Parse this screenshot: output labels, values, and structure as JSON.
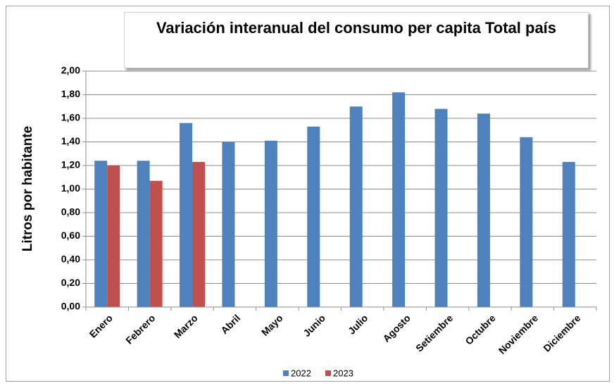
{
  "chart_data": {
    "type": "bar",
    "title": "Variación interanual del consumo per capita  Total país",
    "y_label": "Litros  por  habitante",
    "categories": [
      "Enero",
      "Febrero",
      "Marzo",
      "Abril",
      "Mayo",
      "Junio",
      "Julio",
      "Agosto",
      "Setiembre",
      "Octubre",
      "Noviembre",
      "Diciembre"
    ],
    "series": [
      {
        "name": "2022",
        "color": "#4f81bd",
        "values": [
          1.24,
          1.24,
          1.56,
          1.4,
          1.41,
          1.53,
          1.7,
          1.82,
          1.68,
          1.64,
          1.44,
          1.23
        ]
      },
      {
        "name": "2023",
        "color": "#c0504d",
        "values": [
          1.2,
          1.07,
          1.23,
          null,
          null,
          null,
          null,
          null,
          null,
          null,
          null,
          null
        ]
      }
    ],
    "ylim": [
      0,
      2
    ],
    "yticks": [
      {
        "value": 0,
        "label": "0,00"
      },
      {
        "value": 0.2,
        "label": "0,20"
      },
      {
        "value": 0.4,
        "label": "0,40"
      },
      {
        "value": 0.6,
        "label": "0,60"
      },
      {
        "value": 0.8,
        "label": "0,80"
      },
      {
        "value": 1,
        "label": "1,00"
      },
      {
        "value": 1.2,
        "label": "1,20"
      },
      {
        "value": 1.4,
        "label": "1,40"
      },
      {
        "value": 1.6,
        "label": "1,60"
      },
      {
        "value": 1.8,
        "label": "1,80"
      },
      {
        "value": 2,
        "label": "2,00"
      }
    ],
    "grid": true,
    "legend": "bottom"
  }
}
